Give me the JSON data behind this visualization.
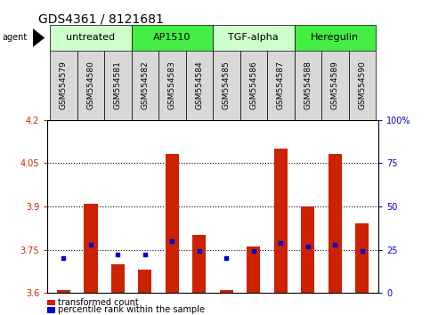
{
  "title": "GDS4361 / 8121681",
  "samples": [
    "GSM554579",
    "GSM554580",
    "GSM554581",
    "GSM554582",
    "GSM554583",
    "GSM554584",
    "GSM554585",
    "GSM554586",
    "GSM554587",
    "GSM554588",
    "GSM554589",
    "GSM554590"
  ],
  "red_values": [
    3.61,
    3.91,
    3.7,
    3.68,
    4.08,
    3.8,
    3.61,
    3.76,
    4.1,
    3.9,
    4.08,
    3.84
  ],
  "blue_values_pct": [
    20,
    28,
    22,
    22,
    30,
    24,
    20,
    24,
    29,
    27,
    28,
    24
  ],
  "y_min": 3.6,
  "y_max": 4.2,
  "y_ticks_left": [
    3.6,
    3.75,
    3.9,
    4.05,
    4.2
  ],
  "y_ticks_right": [
    0,
    25,
    50,
    75,
    100
  ],
  "dotted_lines": [
    3.75,
    3.9,
    4.05
  ],
  "bar_color": "#cc2200",
  "dot_color": "#0000cc",
  "bar_base": 3.6,
  "groups": [
    {
      "label": "untreated",
      "start": 0,
      "end": 3,
      "color": "#ccffcc"
    },
    {
      "label": "AP1510",
      "start": 3,
      "end": 6,
      "color": "#44ee44"
    },
    {
      "label": "TGF-alpha",
      "start": 6,
      "end": 9,
      "color": "#ccffcc"
    },
    {
      "label": "Heregulin",
      "start": 9,
      "end": 12,
      "color": "#44ee44"
    }
  ],
  "legend_tc_label": "transformed count",
  "legend_pr_label": "percentile rank within the sample",
  "agent_label": "agent",
  "ylabel_left_color": "#cc2200",
  "ylabel_right_color": "#0000cc",
  "title_fontsize": 10,
  "tick_fontsize": 7,
  "sample_fontsize": 6.5,
  "group_fontsize": 8
}
